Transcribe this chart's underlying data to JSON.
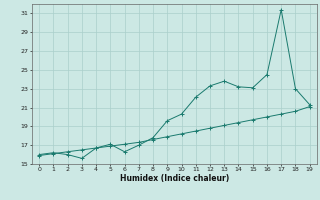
{
  "x": [
    0,
    1,
    2,
    3,
    4,
    5,
    6,
    7,
    8,
    9,
    10,
    11,
    12,
    13,
    14,
    15,
    16,
    17,
    18,
    19
  ],
  "y_jagged": [
    16.0,
    16.2,
    16.0,
    15.6,
    16.7,
    17.1,
    16.3,
    17.0,
    17.8,
    19.6,
    20.3,
    22.1,
    23.3,
    23.8,
    23.2,
    23.1,
    24.5,
    31.4,
    23.0,
    21.3
  ],
  "y_linear": [
    15.9,
    16.1,
    16.3,
    16.5,
    16.7,
    16.9,
    17.1,
    17.3,
    17.6,
    17.9,
    18.2,
    18.5,
    18.8,
    19.1,
    19.4,
    19.7,
    20.0,
    20.3,
    20.6,
    21.1
  ],
  "xlabel": "Humidex (Indice chaleur)",
  "line_color": "#1a7a6e",
  "bg_color": "#cce8e4",
  "grid_color": "#aacfcb",
  "ylim": [
    15,
    32
  ],
  "xlim": [
    -0.5,
    19.5
  ],
  "yticks": [
    15,
    17,
    19,
    21,
    23,
    25,
    27,
    29,
    31
  ],
  "xticks": [
    0,
    1,
    2,
    3,
    4,
    5,
    6,
    7,
    8,
    9,
    10,
    11,
    12,
    13,
    14,
    15,
    16,
    17,
    18,
    19
  ]
}
